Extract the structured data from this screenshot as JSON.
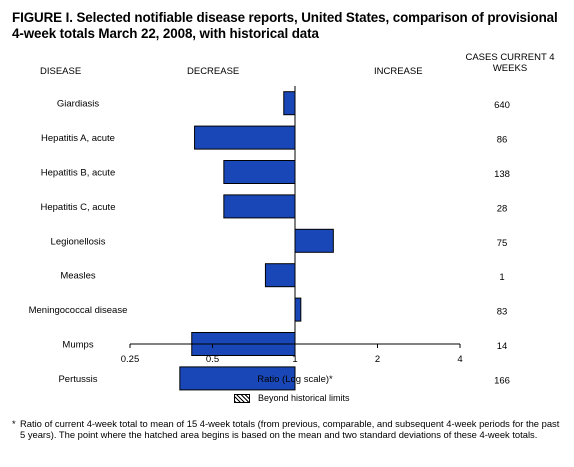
{
  "title": "FIGURE I. Selected notifiable disease reports, United States, comparison of provisional 4-week totals March 22, 2008, with historical data",
  "headers": {
    "disease": "DISEASE",
    "decrease": "DECREASE",
    "increase": "INCREASE",
    "cases": "CASES CURRENT 4 WEEKS"
  },
  "legend": {
    "label": "Beyond historical limits"
  },
  "footnote": {
    "marker": "*",
    "text": "Ratio of current 4-week total to mean of 15 4-week totals (from previous, comparable, and subsequent 4-week periods for the past 5 years). The point where the hatched area begins is based on the mean and two standard deviations of these 4-week totals."
  },
  "colors": {
    "bar": "#1a47b8",
    "axis": "#000000"
  },
  "chart_data": {
    "type": "bar",
    "orientation": "horizontal",
    "xscale": "log2",
    "xlabel": "Ratio (Log scale)*",
    "xlim": [
      0.25,
      4
    ],
    "xticks": [
      0.25,
      0.5,
      1,
      2,
      4
    ],
    "xtick_labels": [
      "0.25",
      "0.5",
      "1",
      "2",
      "4"
    ],
    "baseline": 1,
    "categories": [
      "Giardiasis",
      "Hepatitis A, acute",
      "Hepatitis B, acute",
      "Hepatitis C, acute",
      "Legionellosis",
      "Measles",
      "Meningococcal disease",
      "Mumps",
      "Pertussis"
    ],
    "values": [
      0.91,
      0.43,
      0.55,
      0.55,
      1.38,
      0.78,
      1.05,
      0.42,
      0.38
    ],
    "cases": [
      "640",
      "86",
      "138",
      "28",
      "75",
      "1",
      "83",
      "14",
      "166"
    ]
  }
}
